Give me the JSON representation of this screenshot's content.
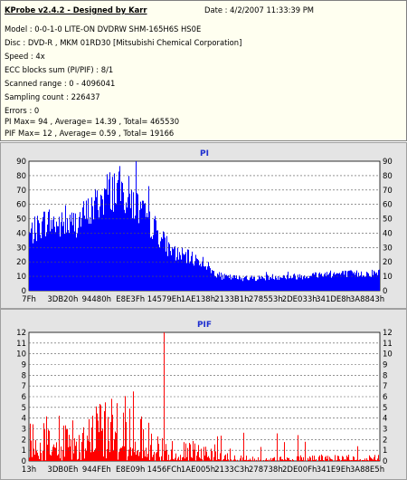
{
  "info": {
    "app_title": "KProbe v2.4.2 - Designed by Karr",
    "date": "Date : 4/2/2007 11:33:39 PM",
    "model": "Model : 0-0-1-0 LITE-ON DVDRW SHM-165H6S HS0E",
    "disc": "Disc : DVD-R , MKM 01RD30  [Mitsubishi Chemical Corporation]",
    "speed": "Speed : 4x",
    "ecc": "ECC blocks sum (PI/PIF) : 8/1",
    "scanned": "Scanned range : 0 - 4096041",
    "sampling": "Sampling count : 226437",
    "errors": "Errors : 0",
    "pi_stats": "PI Max= 94 , Average= 14.39 , Total= 465530",
    "pif_stats": "PIF Max= 12 , Average= 0.59 , Total= 19166"
  },
  "chart_data": [
    {
      "type": "area",
      "title": "PI",
      "color": "#0000ff",
      "xlabel": "",
      "ylabel": "",
      "ylim": [
        0,
        90
      ],
      "yticks": [
        0,
        10,
        20,
        30,
        40,
        50,
        60,
        70,
        80,
        90
      ],
      "xticks": [
        "7Fh",
        "3DB20h",
        "94480h",
        "E8E3Fh",
        "14579Eh",
        "1AE138h",
        "2133B1h",
        "278553h",
        "2DE033h",
        "341DE8h",
        "3A8843h"
      ],
      "grid": true,
      "max": 94,
      "envelope_x": [
        0,
        0.02,
        0.05,
        0.08,
        0.11,
        0.14,
        0.17,
        0.2,
        0.22,
        0.25,
        0.28,
        0.3,
        0.33,
        0.36,
        0.38,
        0.4,
        0.42,
        0.45,
        0.48,
        0.5,
        0.52,
        0.55,
        0.6,
        0.65,
        0.7,
        0.75,
        0.8,
        0.85,
        0.9,
        0.95,
        1.0
      ],
      "envelope_y": [
        40,
        44,
        50,
        47,
        46,
        50,
        56,
        64,
        70,
        74,
        68,
        62,
        52,
        44,
        36,
        30,
        26,
        24,
        22,
        20,
        14,
        10,
        9,
        9,
        10,
        10,
        11,
        12,
        12,
        12,
        13
      ]
    },
    {
      "type": "bar",
      "title": "PIF",
      "color": "#ff0000",
      "xlabel": "",
      "ylabel": "",
      "ylim": [
        0,
        12
      ],
      "yticks": [
        0,
        1,
        2,
        3,
        4,
        5,
        6,
        7,
        8,
        9,
        10,
        11,
        12
      ],
      "xticks": [
        "13h",
        "3DB0Eh",
        "944FEh",
        "E8E09h",
        "1456FCh",
        "1AE005h",
        "2133C3h",
        "278738h",
        "2DE00Fh",
        "341E9Eh",
        "3A88E5h"
      ],
      "grid": true,
      "max": 12,
      "envelope_x": [
        0,
        0.05,
        0.1,
        0.15,
        0.2,
        0.25,
        0.3,
        0.35,
        0.4,
        0.45,
        0.5,
        0.55,
        0.6,
        0.7,
        0.8,
        0.9,
        1.0
      ],
      "envelope_y": [
        2.5,
        3,
        3.5,
        3,
        4,
        5,
        4,
        3,
        2,
        1.5,
        1,
        0.6,
        0.4,
        0.3,
        0.4,
        0.4,
        0.5
      ]
    }
  ]
}
